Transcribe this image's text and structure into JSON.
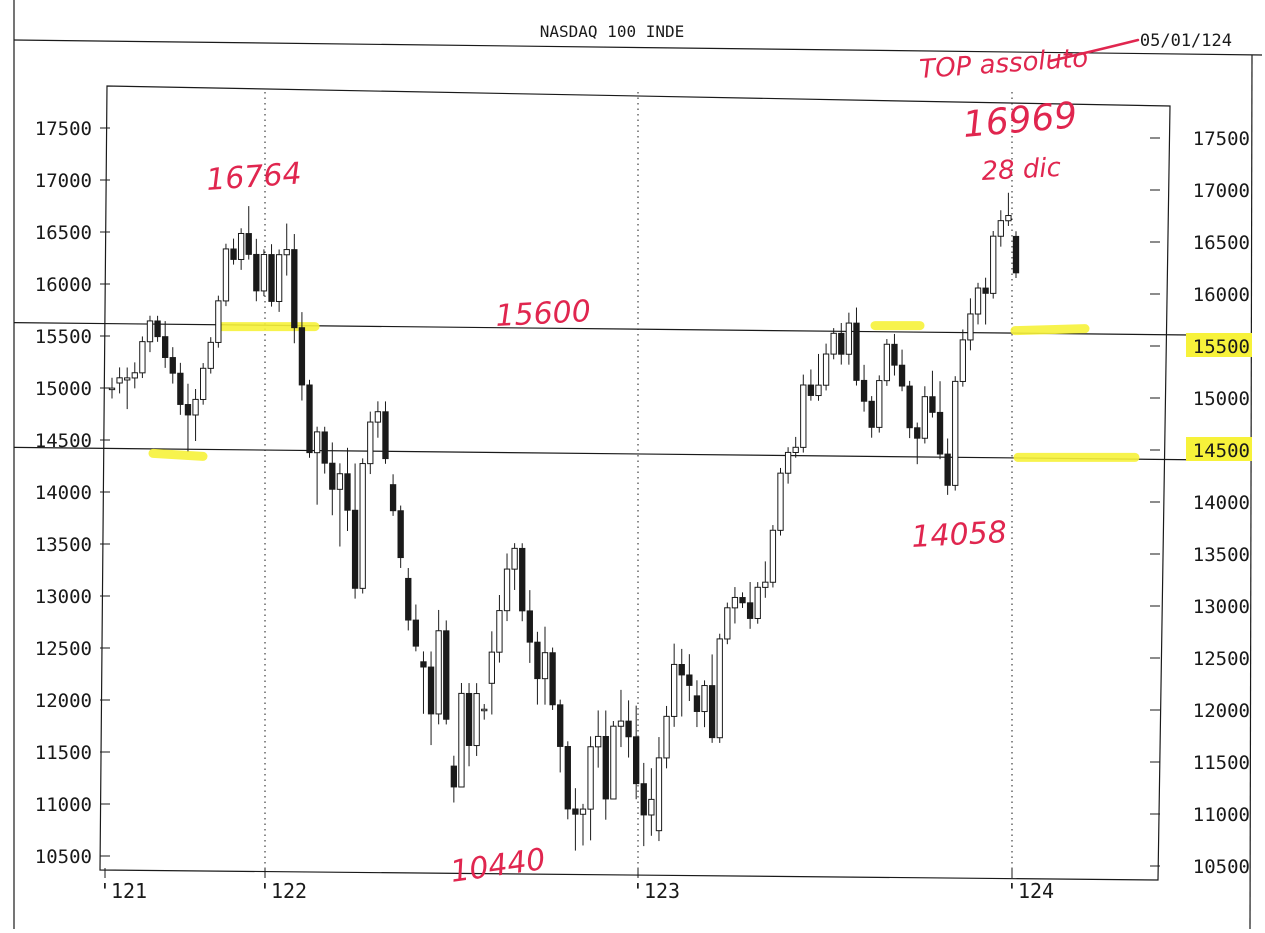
{
  "header": {
    "title": "NASDAQ 100 INDE",
    "date": "05/01/124"
  },
  "annotations": {
    "peak_2021": "16764",
    "resistance": "15600",
    "top_label": "TOP assoluto",
    "top_value": "16969",
    "top_date": "28 dic",
    "low_2022": "10440",
    "low_2023": "14058"
  },
  "colors": {
    "ink": "#1a1a1a",
    "handwriting": "#e0264f",
    "highlight": "#f7f23a"
  },
  "chart_data": {
    "type": "candlestick",
    "title": "NASDAQ 100 INDE",
    "xlabel": "",
    "ylabel": "",
    "x_ticks": [
      "'121",
      "'122",
      "'123",
      "'124"
    ],
    "y_ticks": [
      10500,
      11000,
      11500,
      12000,
      12500,
      13000,
      13500,
      14000,
      14500,
      15000,
      15500,
      16000,
      16500,
      17000,
      17500
    ],
    "highlighted_y_ticks": [
      15500,
      14500
    ],
    "ylim": [
      10370,
      17850
    ],
    "grid": "dotted vertical lines at year starts",
    "horizontal_lines": [
      15600,
      14400
    ],
    "series": [
      {
        "candles": [
          [
            15000,
            15100,
            14900,
            15000
          ],
          [
            15050,
            15200,
            14950,
            15100
          ],
          [
            15080,
            15200,
            14800,
            15100
          ],
          [
            15100,
            15250,
            15000,
            15150
          ],
          [
            15150,
            15500,
            15100,
            15450
          ],
          [
            15450,
            15700,
            15350,
            15650
          ],
          [
            15650,
            15700,
            15450,
            15500
          ],
          [
            15500,
            15650,
            15200,
            15300
          ],
          [
            15300,
            15400,
            15050,
            15150
          ],
          [
            15150,
            15250,
            14750,
            14850
          ],
          [
            14850,
            15050,
            14400,
            14750
          ],
          [
            14750,
            15000,
            14500,
            14900
          ],
          [
            14900,
            15250,
            14850,
            15200
          ],
          [
            15200,
            15500,
            15150,
            15450
          ],
          [
            15450,
            15900,
            15400,
            15850
          ],
          [
            15850,
            16400,
            15800,
            16350
          ],
          [
            16350,
            16450,
            16200,
            16250
          ],
          [
            16250,
            16550,
            16150,
            16500
          ],
          [
            16500,
            16764,
            16250,
            16300
          ],
          [
            16300,
            16450,
            15850,
            15950
          ],
          [
            15950,
            16350,
            15900,
            16300
          ],
          [
            16300,
            16400,
            15800,
            15850
          ],
          [
            15850,
            16350,
            15750,
            16300
          ],
          [
            16300,
            16600,
            16100,
            16350
          ],
          [
            16350,
            16500,
            15450,
            15600
          ],
          [
            15600,
            15750,
            14900,
            15050
          ],
          [
            15050,
            15100,
            14350,
            14400
          ],
          [
            14400,
            14650,
            13900,
            14600
          ],
          [
            14600,
            14650,
            14200,
            14300
          ],
          [
            14300,
            14500,
            13800,
            14050
          ],
          [
            14050,
            14300,
            13500,
            14200
          ],
          [
            14200,
            14450,
            13650,
            13850
          ],
          [
            13850,
            14300,
            13000,
            13100
          ],
          [
            13100,
            14350,
            13050,
            14300
          ],
          [
            14300,
            14800,
            14200,
            14700
          ],
          [
            14700,
            14900,
            14550,
            14800
          ],
          [
            14800,
            14900,
            14300,
            14350
          ],
          [
            14100,
            14200,
            13800,
            13850
          ],
          [
            13850,
            13900,
            13300,
            13400
          ],
          [
            13200,
            13300,
            12700,
            12800
          ],
          [
            12800,
            12950,
            12500,
            12550
          ],
          [
            12400,
            12500,
            11900,
            12350
          ],
          [
            12350,
            12500,
            11600,
            11900
          ],
          [
            11900,
            12900,
            11800,
            12700
          ],
          [
            12700,
            12800,
            11800,
            11850
          ],
          [
            11400,
            11500,
            11050,
            11200
          ],
          [
            11200,
            12200,
            11200,
            12100
          ],
          [
            12100,
            12200,
            11400,
            11600
          ],
          [
            11600,
            12200,
            11500,
            12100
          ],
          [
            11950,
            12000,
            11850,
            11950
          ],
          [
            12200,
            12700,
            11900,
            12500
          ],
          [
            12500,
            13050,
            12400,
            12900
          ],
          [
            12900,
            13450,
            12800,
            13300
          ],
          [
            13300,
            13550,
            13100,
            13500
          ],
          [
            13500,
            13550,
            12800,
            12900
          ],
          [
            12900,
            13100,
            12400,
            12600
          ],
          [
            12600,
            12700,
            12000,
            12250
          ],
          [
            12250,
            12750,
            12000,
            12500
          ],
          [
            12500,
            12550,
            11950,
            12000
          ],
          [
            12000,
            12050,
            11350,
            11600
          ],
          [
            11600,
            11650,
            10900,
            11000
          ],
          [
            11000,
            11200,
            10600,
            10950
          ],
          [
            10950,
            11050,
            10650,
            11000
          ],
          [
            11000,
            11700,
            10700,
            11600
          ],
          [
            11600,
            11950,
            11400,
            11700
          ],
          [
            11700,
            11950,
            10900,
            11100
          ],
          [
            11100,
            11850,
            11100,
            11800
          ],
          [
            11800,
            12150,
            11600,
            11850
          ],
          [
            11850,
            12050,
            11500,
            11700
          ],
          [
            11700,
            12000,
            11100,
            11250
          ],
          [
            11250,
            11450,
            10650,
            10950
          ],
          [
            10950,
            11400,
            10750,
            11100
          ],
          [
            10800,
            11700,
            10700,
            11500
          ],
          [
            11500,
            12000,
            11400,
            11900
          ],
          [
            11900,
            12600,
            11800,
            12400
          ],
          [
            12400,
            12550,
            11900,
            12300
          ],
          [
            12300,
            12500,
            12050,
            12200
          ],
          [
            12100,
            12250,
            11800,
            11950
          ],
          [
            11950,
            12250,
            11800,
            12200
          ],
          [
            12200,
            12500,
            11650,
            11700
          ],
          [
            11700,
            12700,
            11650,
            12650
          ],
          [
            12650,
            13000,
            12600,
            12950
          ],
          [
            12950,
            13150,
            12800,
            13050
          ],
          [
            13050,
            13100,
            12950,
            13000
          ],
          [
            13000,
            13200,
            12750,
            12850
          ],
          [
            12850,
            13200,
            12800,
            13150
          ],
          [
            13150,
            13400,
            13050,
            13200
          ],
          [
            13200,
            13750,
            13150,
            13700
          ],
          [
            13700,
            14300,
            13650,
            14250
          ],
          [
            14250,
            14500,
            14150,
            14450
          ],
          [
            14450,
            14600,
            14400,
            14500
          ],
          [
            14500,
            15200,
            14450,
            15100
          ],
          [
            15100,
            15250,
            14950,
            15000
          ],
          [
            15000,
            15400,
            14950,
            15100
          ],
          [
            15100,
            15500,
            15050,
            15400
          ],
          [
            15400,
            15650,
            15350,
            15600
          ],
          [
            15600,
            15700,
            15300,
            15400
          ],
          [
            15400,
            15800,
            15300,
            15700
          ],
          [
            15700,
            15850,
            15100,
            15150
          ],
          [
            15150,
            15300,
            14850,
            14950
          ],
          [
            14950,
            15000,
            14600,
            14700
          ],
          [
            14700,
            15200,
            14650,
            15150
          ],
          [
            15150,
            15550,
            15100,
            15500
          ],
          [
            15500,
            15600,
            15200,
            15300
          ],
          [
            15300,
            15450,
            15050,
            15100
          ],
          [
            15100,
            15150,
            14600,
            14700
          ],
          [
            14700,
            14750,
            14350,
            14600
          ],
          [
            14600,
            15100,
            14550,
            15000
          ],
          [
            15000,
            15250,
            14800,
            14850
          ],
          [
            14850,
            15150,
            14400,
            14450
          ],
          [
            14450,
            14600,
            14058,
            14150
          ],
          [
            14150,
            15200,
            14100,
            15150
          ],
          [
            15150,
            15650,
            15100,
            15550
          ],
          [
            15550,
            15950,
            15450,
            15800
          ],
          [
            15800,
            16100,
            15700,
            16050
          ],
          [
            16050,
            16150,
            15700,
            16000
          ],
          [
            16000,
            16600,
            15950,
            16550
          ],
          [
            16550,
            16800,
            16450,
            16700
          ],
          [
            16700,
            16969,
            16650,
            16750
          ],
          [
            16550,
            16600,
            16150,
            16200
          ]
        ]
      }
    ]
  }
}
